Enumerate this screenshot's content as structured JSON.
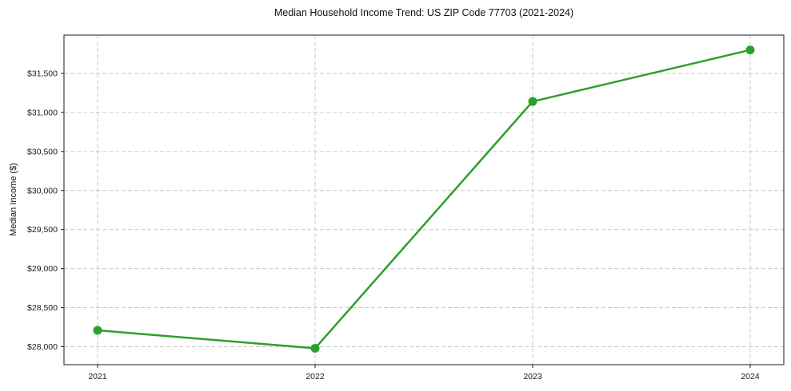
{
  "chart_data": {
    "type": "line",
    "title": "Median Household Income Trend: US ZIP Code 77703 (2021-2024)",
    "xlabel": "",
    "ylabel": "Median Income ($)",
    "categories": [
      "2021",
      "2022",
      "2023",
      "2024"
    ],
    "series": [
      {
        "values": [
          28210,
          27980,
          31140,
          31800
        ]
      }
    ],
    "ylim": [
      27770,
      31990
    ],
    "y_ticks": [
      {
        "value": 28000,
        "label": "$28,000"
      },
      {
        "value": 28500,
        "label": "$28,500"
      },
      {
        "value": 29000,
        "label": "$29,000"
      },
      {
        "value": 29500,
        "label": "$29,500"
      },
      {
        "value": 30000,
        "label": "$30,000"
      },
      {
        "value": 30500,
        "label": "$30,500"
      },
      {
        "value": 31000,
        "label": "$31,000"
      },
      {
        "value": 31500,
        "label": "$31,500"
      }
    ],
    "grid": true,
    "legend": false,
    "line_color": "#2ca02c",
    "marker": "circle",
    "grid_color": "#c9c9c9",
    "spine_color": "#1a1a1a",
    "tick_label_color": "#1a1a1a",
    "background": "#ffffff"
  }
}
